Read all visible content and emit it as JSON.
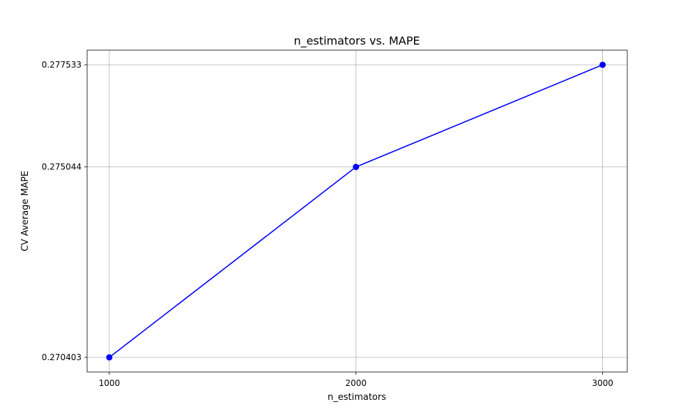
{
  "chart_data": {
    "type": "line",
    "title": "n_estimators vs. MAPE",
    "xlabel": "n_estimators",
    "ylabel": "CV Average MAPE",
    "x": [
      1000,
      2000,
      3000
    ],
    "xticks": [
      "1000",
      "2000",
      "3000"
    ],
    "yticks": [
      "0.270403",
      "0.275044",
      "0.277533"
    ],
    "series": [
      {
        "values": [
          0.270403,
          0.275044,
          0.277533
        ],
        "color": "#0000ff",
        "marker": "circle"
      }
    ],
    "xlim": [
      910,
      3100
    ],
    "ylim": [
      0.270046,
      0.27789
    ],
    "grid": true
  }
}
